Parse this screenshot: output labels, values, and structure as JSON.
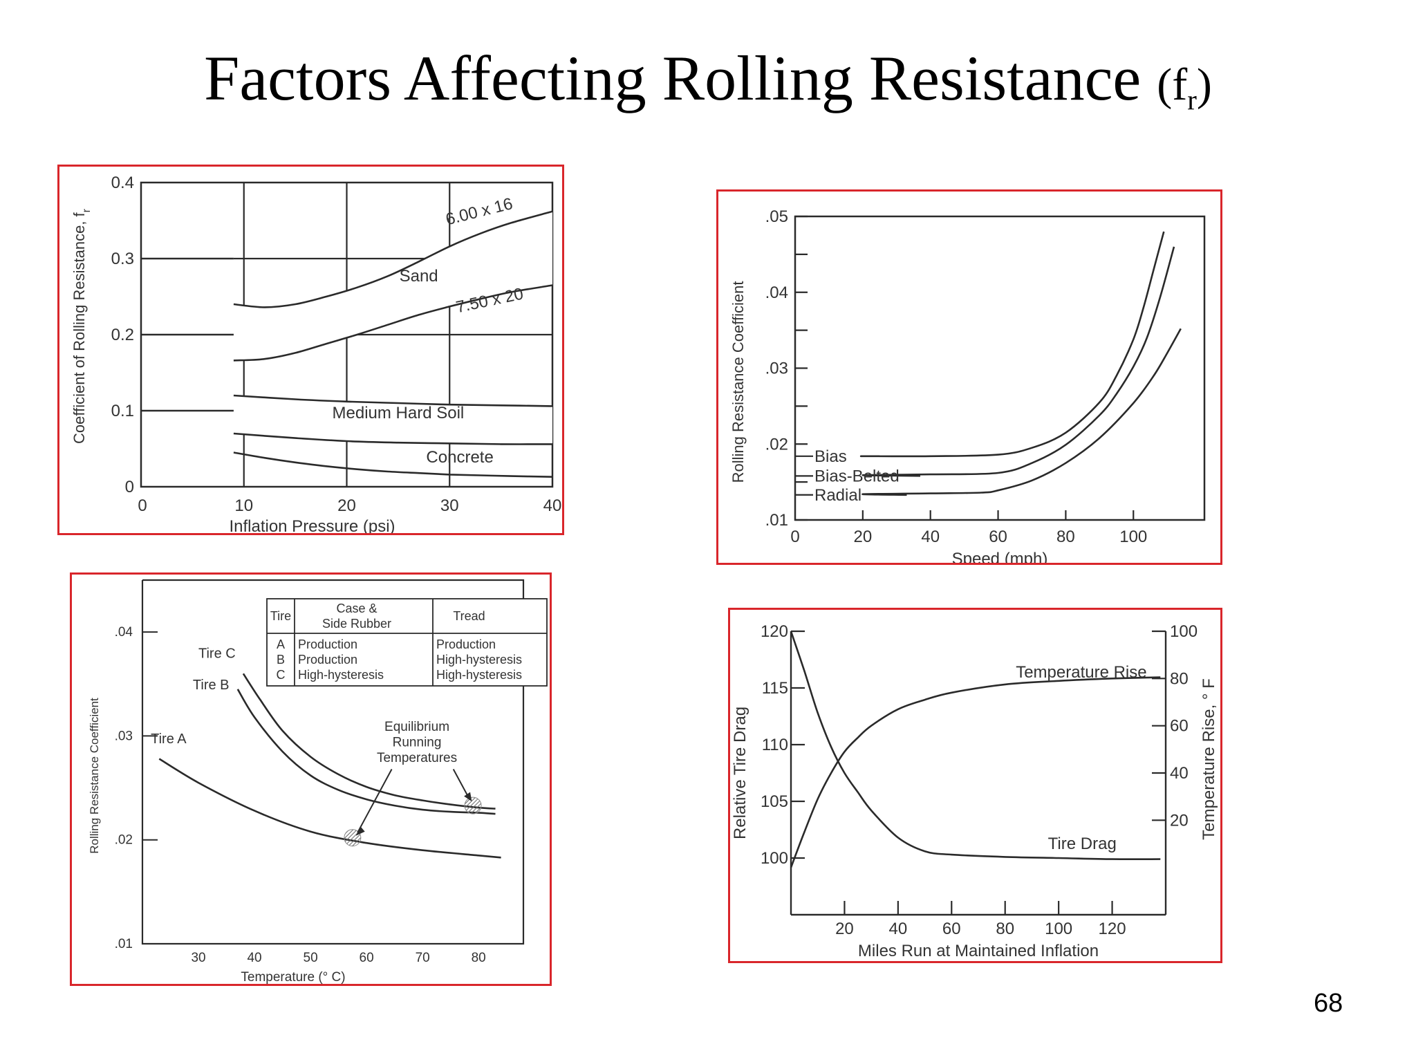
{
  "slide": {
    "title": "Factors Affecting Rolling Resistance",
    "title_symbol": "(f",
    "title_symbol_sub": "r",
    "title_symbol_close": ")",
    "page_number": "68",
    "border_color": "#d9262b",
    "line_color": "#2a2a2a"
  },
  "chart_data": [
    {
      "type": "line",
      "xlabel": "Inflation Pressure (psi)",
      "ylabel": "Coefficient of Rolling Resistance, f",
      "ylabel_sub": "r",
      "xlim": [
        0,
        40
      ],
      "ylim": [
        0,
        0.4
      ],
      "xticks": [
        "0",
        "10",
        "20",
        "30",
        "40"
      ],
      "yticks": [
        "0",
        "0.1",
        "0.2",
        "0.3",
        "0.4"
      ],
      "grid": true,
      "series": [
        {
          "name": "6.00 x 16",
          "x": [
            9,
            12,
            15,
            18,
            21,
            24,
            27,
            30,
            33,
            36,
            40
          ],
          "y": [
            0.24,
            0.236,
            0.24,
            0.25,
            0.262,
            0.277,
            0.296,
            0.316,
            0.333,
            0.347,
            0.362
          ]
        },
        {
          "name": "7.50 x 20",
          "x": [
            9,
            12,
            15,
            18,
            21,
            24,
            27,
            30,
            33,
            36,
            40
          ],
          "y": [
            0.166,
            0.168,
            0.176,
            0.188,
            0.2,
            0.213,
            0.226,
            0.237,
            0.247,
            0.256,
            0.265
          ]
        },
        {
          "name": "",
          "x": [
            9,
            15,
            20,
            25,
            30,
            35,
            40
          ],
          "y": [
            0.12,
            0.115,
            0.112,
            0.11,
            0.108,
            0.107,
            0.106
          ]
        },
        {
          "name": "",
          "x": [
            9,
            15,
            20,
            25,
            30,
            35,
            40
          ],
          "y": [
            0.07,
            0.064,
            0.06,
            0.058,
            0.057,
            0.056,
            0.056
          ]
        },
        {
          "name": "",
          "x": [
            9,
            12,
            15,
            18,
            21,
            24,
            27,
            30,
            33,
            36,
            40
          ],
          "y": [
            0.045,
            0.038,
            0.032,
            0.027,
            0.023,
            0.02,
            0.018,
            0.016,
            0.015,
            0.014,
            0.013
          ]
        },
        {
          "name": "",
          "x": [
            0,
            9
          ],
          "y": [
            0.3,
            0.3
          ]
        },
        {
          "name": "",
          "x": [
            0,
            9
          ],
          "y": [
            0.2,
            0.2
          ]
        },
        {
          "name": "",
          "x": [
            0,
            9
          ],
          "y": [
            0.1,
            0.1
          ]
        }
      ],
      "annotations": [
        {
          "text": "Sand",
          "x": 27,
          "y": 0.27
        },
        {
          "text": "Medium Hard Soil",
          "x": 25,
          "y": 0.09
        },
        {
          "text": "Concrete",
          "x": 31,
          "y": 0.032
        },
        {
          "text": "6.00 x 16",
          "x": 33,
          "y": 0.355
        },
        {
          "text": "7.50 x 20",
          "x": 34,
          "y": 0.238
        }
      ]
    },
    {
      "type": "line",
      "xlabel": "Speed (mph)",
      "ylabel": "Rolling Resistance Coefficient",
      "xlim": [
        0,
        120
      ],
      "ylim": [
        0.01,
        0.05
      ],
      "xticks": [
        "0",
        "20",
        "40",
        "60",
        "80",
        "100"
      ],
      "yticks": [
        ".01",
        ".02",
        ".03",
        ".04",
        ".05"
      ],
      "grid": false,
      "series": [
        {
          "name": "Bias",
          "x": [
            0,
            20,
            40,
            60,
            70,
            80,
            90,
            95,
            100,
            103,
            106,
            109
          ],
          "y": [
            0.0184,
            0.0184,
            0.0184,
            0.0186,
            0.0195,
            0.0215,
            0.0255,
            0.029,
            0.0338,
            0.038,
            0.043,
            0.048
          ]
        },
        {
          "name": "Bias-Belted",
          "x": [
            0,
            20,
            40,
            60,
            70,
            80,
            90,
            95,
            100,
            104,
            108,
            112
          ],
          "y": [
            0.0158,
            0.0159,
            0.016,
            0.0162,
            0.0175,
            0.0199,
            0.0238,
            0.0266,
            0.0302,
            0.034,
            0.0395,
            0.046
          ]
        },
        {
          "name": "Radial",
          "x": [
            0,
            20,
            40,
            55,
            60,
            70,
            80,
            90,
            100,
            106,
            110,
            114
          ],
          "y": [
            0.0133,
            0.0134,
            0.0135,
            0.0136,
            0.0139,
            0.0152,
            0.0175,
            0.0208,
            0.0254,
            0.029,
            0.032,
            0.0352
          ]
        }
      ]
    },
    {
      "type": "line",
      "xlabel": "Temperature (° C)",
      "ylabel": "Rolling Resistance Coefficient",
      "xlim": [
        20,
        88
      ],
      "ylim": [
        0.01,
        0.045
      ],
      "xticks": [
        "30",
        "40",
        "50",
        "60",
        "70",
        "80"
      ],
      "yticks": [
        ".01",
        ".02",
        ".03",
        ".04"
      ],
      "grid": false,
      "series": [
        {
          "name": "Tire A",
          "x": [
            23,
            30,
            40,
            50,
            60,
            70,
            80,
            84
          ],
          "y": [
            0.0278,
            0.0255,
            0.0228,
            0.0208,
            0.0197,
            0.019,
            0.0185,
            0.0183
          ]
        },
        {
          "name": "Tire B",
          "x": [
            37,
            40,
            45,
            50,
            55,
            60,
            65,
            70,
            75,
            80,
            83
          ],
          "y": [
            0.0345,
            0.0318,
            0.0285,
            0.0262,
            0.0248,
            0.0239,
            0.0233,
            0.0229,
            0.0227,
            0.0226,
            0.0225
          ]
        },
        {
          "name": "Tire C",
          "x": [
            38,
            41,
            45,
            50,
            55,
            60,
            65,
            70,
            75,
            80,
            83
          ],
          "y": [
            0.036,
            0.0335,
            0.0305,
            0.028,
            0.0263,
            0.0251,
            0.0243,
            0.0238,
            0.0234,
            0.0231,
            0.023
          ]
        }
      ],
      "annotations": [
        {
          "text": "Equilibrium",
          "x": 69,
          "y": 0.0305
        },
        {
          "text": "Running",
          "x": 69,
          "y": 0.029
        },
        {
          "text": "Temperatures",
          "x": 69,
          "y": 0.0275
        }
      ],
      "table": {
        "headers": [
          "Tire",
          "Case & Side Rubber",
          "Tread"
        ],
        "header_line1": "Case &",
        "header_line2": "Side Rubber",
        "rows": [
          [
            "A",
            "Production",
            "Production"
          ],
          [
            "B",
            "Production",
            "High-hysteresis"
          ],
          [
            "C",
            "High-hysteresis",
            "High-hysteresis"
          ]
        ]
      },
      "markers": [
        {
          "x": 57.5,
          "y": 0.0202
        },
        {
          "x": 79,
          "y": 0.0233
        }
      ]
    },
    {
      "type": "line",
      "xlabel": "Miles Run at Maintained Inflation",
      "ylabel": "Relative Tire Drag",
      "ylabel_right": "Temperature Rise, ° F",
      "xlim": [
        0,
        140
      ],
      "ylim": [
        95,
        120
      ],
      "ylim_right": [
        0,
        100
      ],
      "xticks": [
        "20",
        "40",
        "60",
        "80",
        "100",
        "120"
      ],
      "yticks": [
        "100",
        "105",
        "110",
        "115",
        "120"
      ],
      "yticks_right": [
        "20",
        "40",
        "60",
        "80",
        "100"
      ],
      "grid": false,
      "series": [
        {
          "name": "Tire Drag",
          "axis": "left",
          "x": [
            0,
            5,
            10,
            15,
            20,
            25,
            30,
            40,
            50,
            60,
            80,
            100,
            120,
            138
          ],
          "y": [
            120,
            116.5,
            112.8,
            109.8,
            107.5,
            105.8,
            104.2,
            101.8,
            100.6,
            100.3,
            100.1,
            100,
            99.9,
            99.9
          ]
        },
        {
          "name": "Temperature Rise",
          "axis": "right",
          "x": [
            0,
            5,
            10,
            15,
            20,
            25,
            30,
            40,
            50,
            60,
            80,
            100,
            120,
            138
          ],
          "y": [
            0,
            15,
            29,
            40,
            49,
            55,
            60,
            67,
            71,
            74,
            77.5,
            79,
            80,
            80.5
          ]
        }
      ]
    }
  ]
}
